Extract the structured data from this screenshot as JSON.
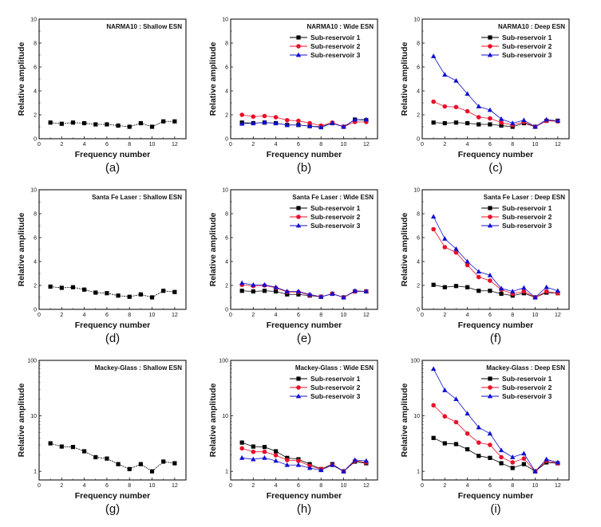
{
  "figure": {
    "type": "multi-panel line charts",
    "series_colors": {
      "Sub-reservoir 1": "#000000",
      "Sub-reservoir 2": "#e8102a",
      "Sub-reservoir 3": "#1010d0",
      "single": "#000000"
    },
    "series_markers": {
      "Sub-reservoir 1": "square",
      "Sub-reservoir 2": "circle",
      "Sub-reservoir 3": "triangle",
      "single": "square"
    }
  },
  "chart_data": [
    {
      "id": "a",
      "sub_label": "(a)",
      "type": "line",
      "title": "NARMA10 : Shallow ESN",
      "xlabel": "Frequency number",
      "ylabel": "Relative amplitude",
      "xlim": [
        0,
        13
      ],
      "ylim": [
        0,
        10
      ],
      "yscale": "linear",
      "xticks": [
        0,
        2,
        4,
        6,
        8,
        10,
        12
      ],
      "yticks": [
        0,
        2,
        4,
        6,
        8,
        10
      ],
      "x": [
        1,
        2,
        3,
        4,
        5,
        6,
        7,
        8,
        9,
        10,
        11,
        12
      ],
      "legend": false,
      "series": [
        {
          "name": "single",
          "values": [
            1.35,
            1.25,
            1.35,
            1.3,
            1.2,
            1.2,
            1.1,
            1.0,
            1.3,
            1.0,
            1.45,
            1.45
          ]
        }
      ]
    },
    {
      "id": "b",
      "sub_label": "(b)",
      "type": "line",
      "title": "NARMA10 : Wide ESN",
      "xlabel": "Frequency number",
      "ylabel": "Relative amplitude",
      "xlim": [
        0,
        13
      ],
      "ylim": [
        0,
        10
      ],
      "yscale": "linear",
      "xticks": [
        0,
        2,
        4,
        6,
        8,
        10,
        12
      ],
      "yticks": [
        0,
        2,
        4,
        6,
        8,
        10
      ],
      "x": [
        1,
        2,
        3,
        4,
        5,
        6,
        7,
        8,
        9,
        10,
        11,
        12
      ],
      "legend": true,
      "legend_position": "top-right",
      "series": [
        {
          "name": "Sub-reservoir 1",
          "values": [
            1.35,
            1.3,
            1.35,
            1.3,
            1.15,
            1.15,
            1.05,
            1.0,
            1.3,
            1.0,
            1.6,
            1.55
          ]
        },
        {
          "name": "Sub-reservoir 2",
          "values": [
            2.0,
            1.85,
            1.9,
            1.8,
            1.55,
            1.5,
            1.3,
            1.1,
            1.35,
            1.0,
            1.4,
            1.4
          ]
        },
        {
          "name": "Sub-reservoir 3",
          "values": [
            1.25,
            1.3,
            1.35,
            1.3,
            1.15,
            1.15,
            1.05,
            0.95,
            1.3,
            1.0,
            1.6,
            1.6
          ]
        }
      ]
    },
    {
      "id": "c",
      "sub_label": "(c)",
      "type": "line",
      "title": "NARMA10 :  Deep ESN",
      "xlabel": "Frequency number",
      "ylabel": "Relative amplitude",
      "xlim": [
        0,
        13
      ],
      "ylim": [
        0,
        10
      ],
      "yscale": "linear",
      "xticks": [
        0,
        2,
        4,
        6,
        8,
        10,
        12
      ],
      "yticks": [
        0,
        2,
        4,
        6,
        8,
        10
      ],
      "x": [
        1,
        2,
        3,
        4,
        5,
        6,
        7,
        8,
        9,
        10,
        11,
        12
      ],
      "legend": true,
      "legend_position": "top-right",
      "series": [
        {
          "name": "Sub-reservoir 1",
          "values": [
            1.35,
            1.3,
            1.35,
            1.3,
            1.2,
            1.2,
            1.1,
            1.0,
            1.3,
            1.0,
            1.5,
            1.5
          ]
        },
        {
          "name": "Sub-reservoir 2",
          "values": [
            3.1,
            2.7,
            2.65,
            2.3,
            1.8,
            1.7,
            1.35,
            1.15,
            1.4,
            1.0,
            1.5,
            1.45
          ]
        },
        {
          "name": "Sub-reservoir 3",
          "values": [
            6.9,
            5.35,
            4.85,
            3.75,
            2.7,
            2.4,
            1.65,
            1.3,
            1.55,
            1.0,
            1.6,
            1.5
          ]
        }
      ]
    },
    {
      "id": "d",
      "sub_label": "(d)",
      "type": "line",
      "title": "Santa Fe Laser : Shallow ESN",
      "xlabel": "Frequency number",
      "ylabel": "Relative amplitude",
      "xlim": [
        0,
        13
      ],
      "ylim": [
        0,
        10
      ],
      "yscale": "linear",
      "xticks": [
        0,
        2,
        4,
        6,
        8,
        10,
        12
      ],
      "yticks": [
        0,
        2,
        4,
        6,
        8,
        10
      ],
      "x": [
        1,
        2,
        3,
        4,
        5,
        6,
        7,
        8,
        9,
        10,
        11,
        12
      ],
      "legend": false,
      "series": [
        {
          "name": "single",
          "values": [
            1.9,
            1.8,
            1.85,
            1.65,
            1.4,
            1.35,
            1.15,
            1.05,
            1.25,
            1.0,
            1.55,
            1.45
          ]
        }
      ]
    },
    {
      "id": "e",
      "sub_label": "(e)",
      "type": "line",
      "title": "Santa Fe Laser : Wide ESN",
      "xlabel": "Frequency number",
      "ylabel": "Relative amplitude",
      "xlim": [
        0,
        13
      ],
      "ylim": [
        0,
        10
      ],
      "yscale": "linear",
      "xticks": [
        0,
        2,
        4,
        6,
        8,
        10,
        12
      ],
      "yticks": [
        0,
        2,
        4,
        6,
        8,
        10
      ],
      "x": [
        1,
        2,
        3,
        4,
        5,
        6,
        7,
        8,
        9,
        10,
        11,
        12
      ],
      "legend": true,
      "legend_position": "top-right",
      "series": [
        {
          "name": "Sub-reservoir 1",
          "values": [
            1.55,
            1.5,
            1.55,
            1.5,
            1.25,
            1.25,
            1.15,
            1.05,
            1.3,
            1.0,
            1.5,
            1.5
          ]
        },
        {
          "name": "Sub-reservoir 2",
          "values": [
            2.05,
            1.95,
            2.0,
            1.8,
            1.45,
            1.45,
            1.2,
            1.05,
            1.3,
            1.0,
            1.5,
            1.5
          ]
        },
        {
          "name": "Sub-reservoir 3",
          "values": [
            2.2,
            2.05,
            2.05,
            1.85,
            1.5,
            1.5,
            1.25,
            1.05,
            1.3,
            1.0,
            1.55,
            1.5
          ]
        }
      ]
    },
    {
      "id": "f",
      "sub_label": "(f)",
      "type": "line",
      "title": "Santa Fe Laser : Deep ESN",
      "xlabel": "Frequency number",
      "ylabel": "Relative amplitude",
      "xlim": [
        0,
        13
      ],
      "ylim": [
        0,
        10
      ],
      "yscale": "linear",
      "xticks": [
        0,
        2,
        4,
        6,
        8,
        10,
        12
      ],
      "yticks": [
        0,
        2,
        4,
        6,
        8,
        10
      ],
      "x": [
        1,
        2,
        3,
        4,
        5,
        6,
        7,
        8,
        9,
        10,
        11,
        12
      ],
      "legend": true,
      "legend_position": "top-right",
      "series": [
        {
          "name": "Sub-reservoir 1",
          "values": [
            2.05,
            1.85,
            1.95,
            1.85,
            1.55,
            1.55,
            1.3,
            1.15,
            1.35,
            1.0,
            1.4,
            1.35
          ]
        },
        {
          "name": "Sub-reservoir 2",
          "values": [
            6.7,
            5.2,
            4.75,
            3.7,
            2.7,
            2.4,
            1.65,
            1.3,
            1.5,
            1.0,
            1.5,
            1.35
          ]
        },
        {
          "name": "Sub-reservoir 3",
          "values": [
            7.75,
            5.9,
            5.05,
            4.0,
            3.15,
            2.85,
            1.75,
            1.5,
            1.8,
            1.0,
            1.85,
            1.55
          ]
        }
      ]
    },
    {
      "id": "g",
      "sub_label": "(g)",
      "type": "line",
      "title": "Mackey-Glass : Shallow ESN",
      "xlabel": "Frequency number",
      "ylabel": "Relative amplitude",
      "xlim": [
        0,
        13
      ],
      "ylim": [
        0.7,
        100
      ],
      "yscale": "log",
      "xticks": [
        0,
        2,
        4,
        6,
        8,
        10,
        12
      ],
      "yticks": [
        1,
        10,
        100
      ],
      "x": [
        1,
        2,
        3,
        4,
        5,
        6,
        7,
        8,
        9,
        10,
        11,
        12
      ],
      "legend": false,
      "series": [
        {
          "name": "single",
          "values": [
            3.2,
            2.8,
            2.75,
            2.3,
            1.8,
            1.7,
            1.35,
            1.1,
            1.35,
            1.0,
            1.5,
            1.4
          ]
        }
      ]
    },
    {
      "id": "h",
      "sub_label": "(h)",
      "type": "line",
      "title": "Mackey-Glass : Wide ESN",
      "xlabel": "Frequency number",
      "ylabel": "Relative amplitude",
      "xlim": [
        0,
        13
      ],
      "ylim": [
        0.7,
        100
      ],
      "yscale": "log",
      "xticks": [
        0,
        2,
        4,
        6,
        8,
        10,
        12
      ],
      "yticks": [
        1,
        10,
        100
      ],
      "x": [
        1,
        2,
        3,
        4,
        5,
        6,
        7,
        8,
        9,
        10,
        11,
        12
      ],
      "legend": true,
      "legend_position": "top-right",
      "series": [
        {
          "name": "Sub-reservoir 1",
          "values": [
            3.3,
            2.8,
            2.75,
            2.3,
            1.75,
            1.65,
            1.35,
            1.1,
            1.35,
            1.0,
            1.5,
            1.4
          ]
        },
        {
          "name": "Sub-reservoir 2",
          "values": [
            2.6,
            2.25,
            2.25,
            1.95,
            1.6,
            1.55,
            1.25,
            1.1,
            1.3,
            1.0,
            1.55,
            1.45
          ]
        },
        {
          "name": "Sub-reservoir 3",
          "values": [
            1.75,
            1.65,
            1.75,
            1.55,
            1.3,
            1.3,
            1.15,
            1.05,
            1.3,
            1.0,
            1.6,
            1.55
          ]
        }
      ]
    },
    {
      "id": "i",
      "sub_label": "(i)",
      "type": "line",
      "title": "Mackey-Glass :  Deep ESN",
      "xlabel": "Frequency number",
      "ylabel": "Relative amplitude",
      "xlim": [
        0,
        13
      ],
      "ylim": [
        0.7,
        100
      ],
      "yscale": "log",
      "xticks": [
        0,
        2,
        4,
        6,
        8,
        10,
        12
      ],
      "yticks": [
        1,
        10,
        100
      ],
      "x": [
        1,
        2,
        3,
        4,
        5,
        6,
        7,
        8,
        9,
        10,
        11,
        12
      ],
      "legend": true,
      "legend_position": "top-right",
      "series": [
        {
          "name": "Sub-reservoir 1",
          "values": [
            4.0,
            3.2,
            3.1,
            2.5,
            1.9,
            1.75,
            1.4,
            1.15,
            1.35,
            1.0,
            1.45,
            1.4
          ]
        },
        {
          "name": "Sub-reservoir 2",
          "values": [
            15.5,
            9.8,
            7.7,
            4.8,
            3.3,
            3.0,
            1.8,
            1.45,
            1.7,
            1.0,
            1.55,
            1.4
          ]
        },
        {
          "name": "Sub-reservoir 3",
          "values": [
            70,
            29,
            20,
            11,
            6.2,
            4.8,
            2.4,
            1.8,
            2.1,
            1.0,
            1.65,
            1.45
          ]
        }
      ]
    }
  ]
}
